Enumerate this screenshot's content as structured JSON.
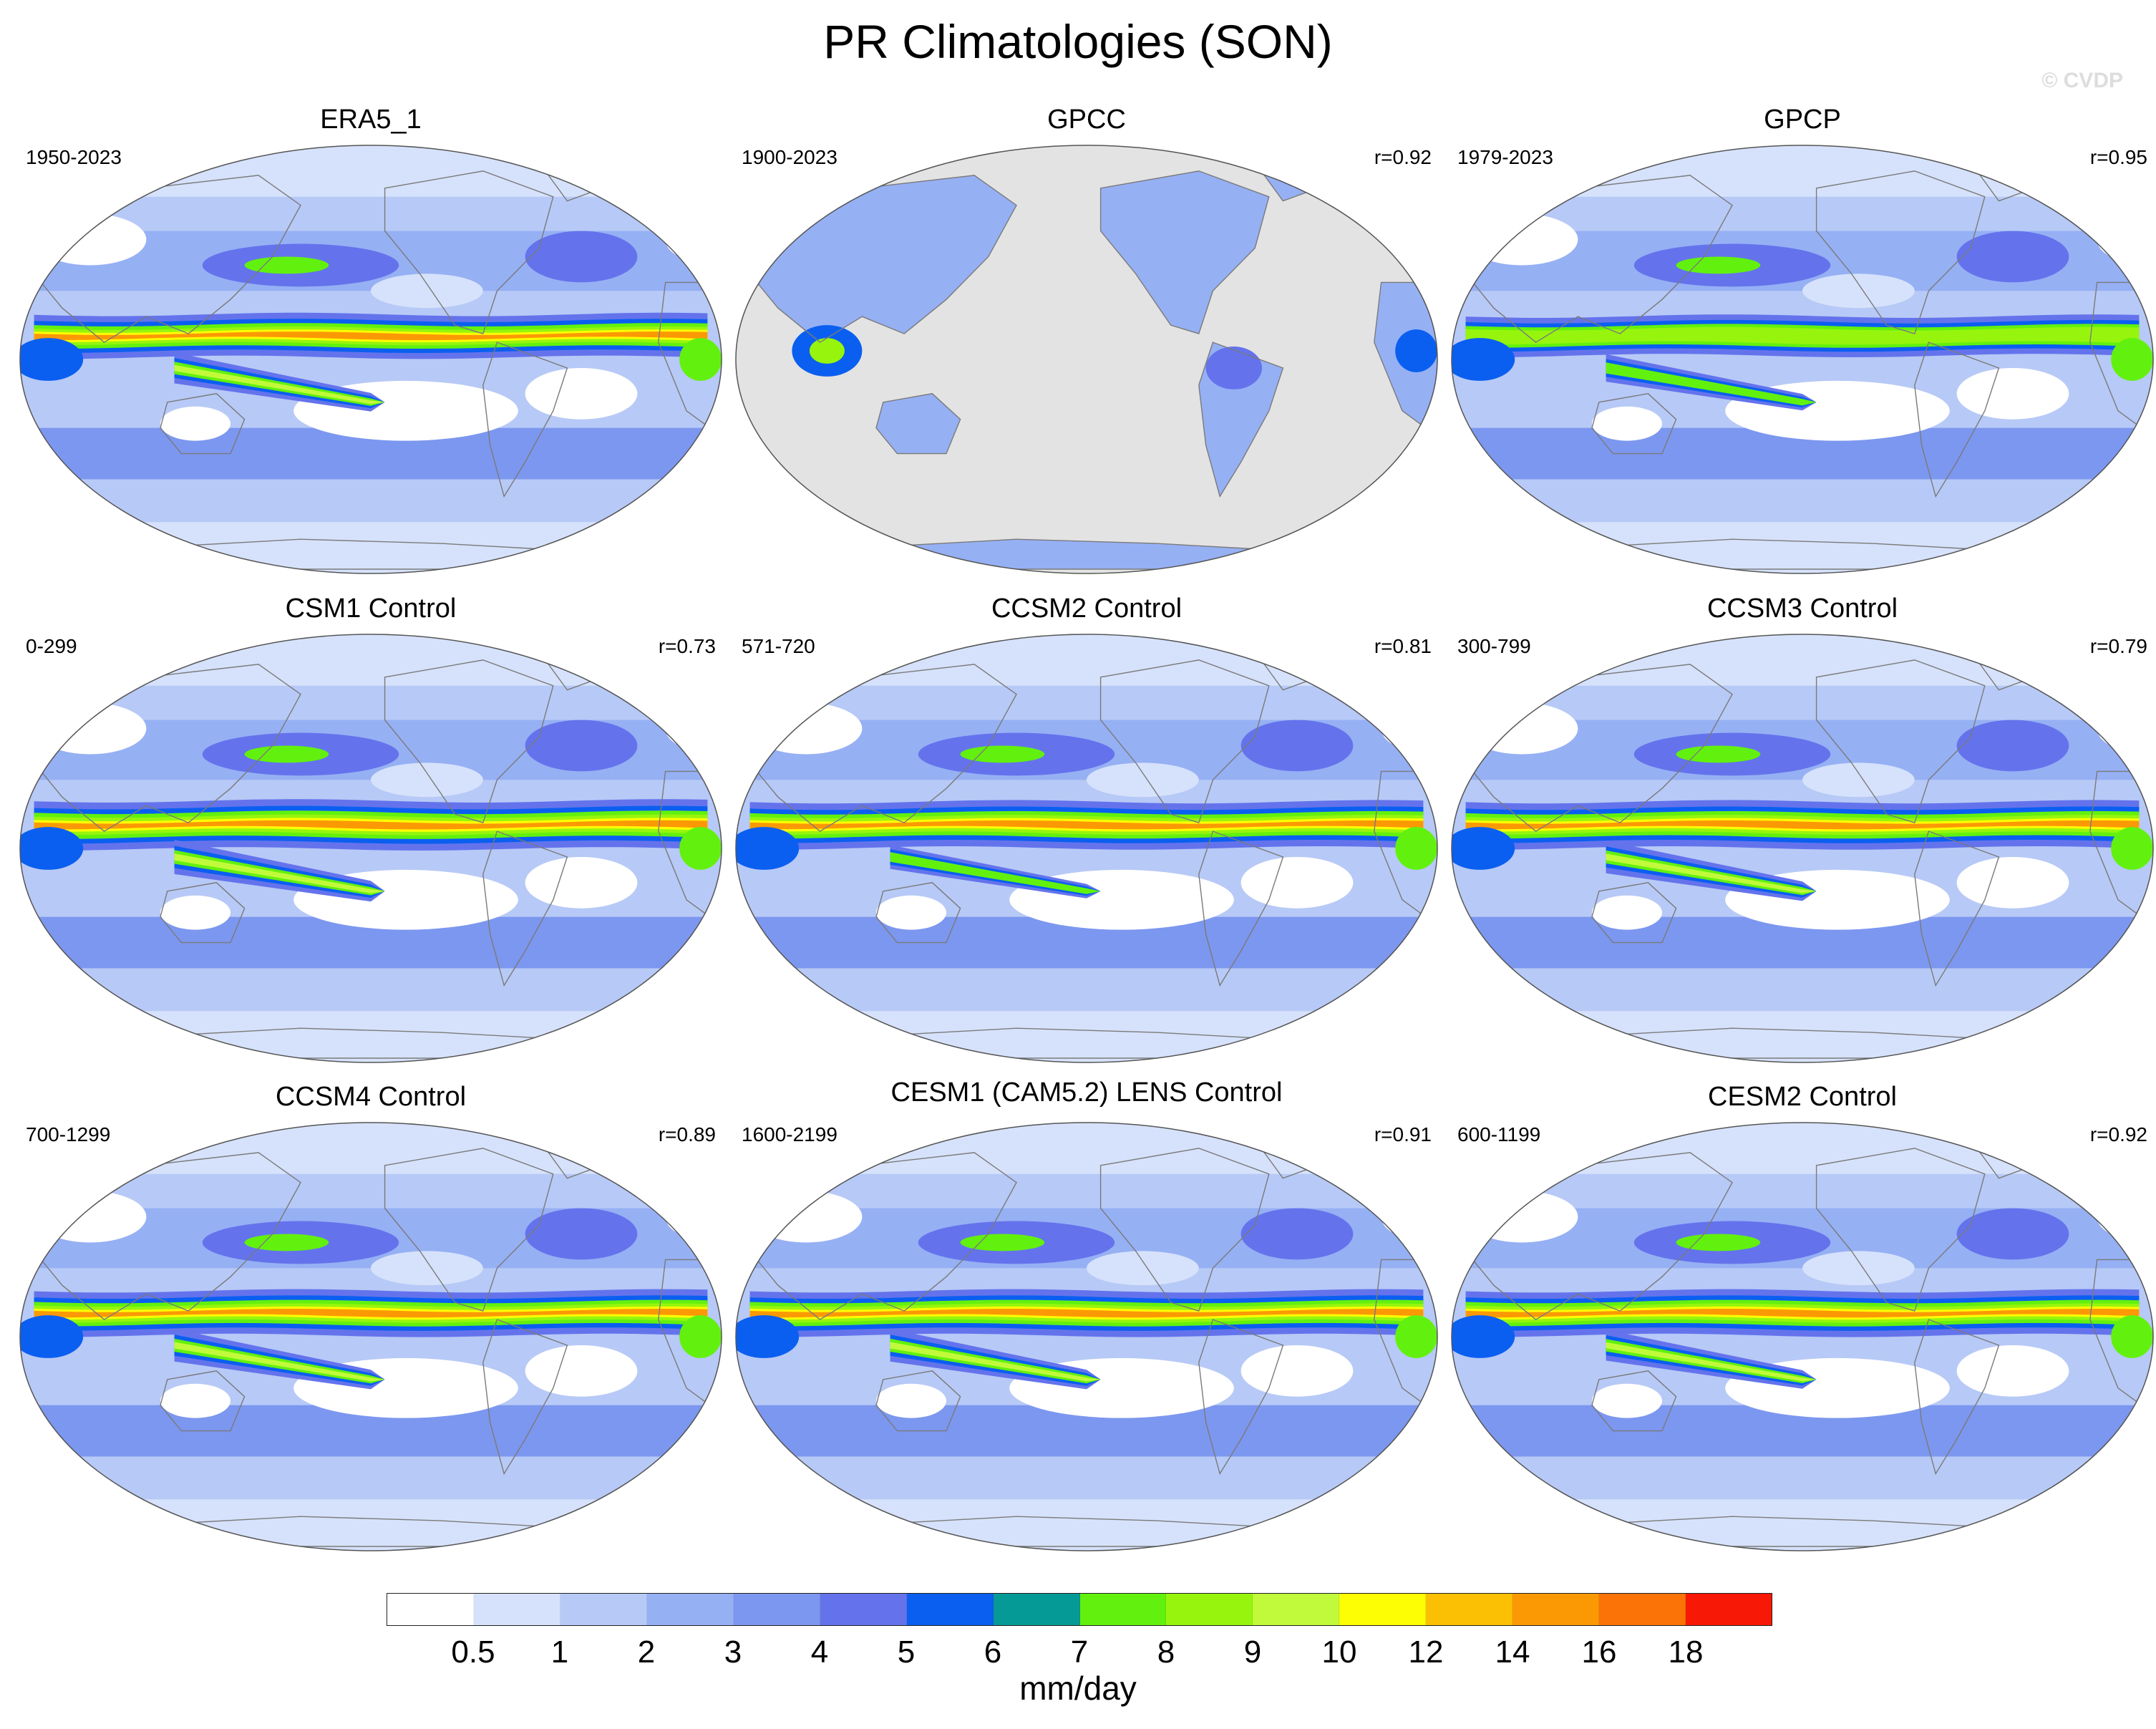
{
  "title": "PR Climatologies (SON)",
  "watermark": "© CVDP",
  "panels": [
    {
      "id": "era5",
      "title": "ERA5_1",
      "years": "1950-2023",
      "corr": "",
      "land_only": false,
      "itcz": 1.0,
      "spcz": 0.8
    },
    {
      "id": "gpcc",
      "title": "GPCC",
      "years": "1900-2023",
      "corr": "r=0.92",
      "land_only": true,
      "itcz": 0.0,
      "spcz": 0.0
    },
    {
      "id": "gpcp",
      "title": "GPCP",
      "years": "1979-2023",
      "corr": "r=0.95",
      "land_only": false,
      "itcz": 0.8,
      "spcz": 0.6
    },
    {
      "id": "csm1",
      "title": "CSM1 Control",
      "years": "0-299",
      "corr": "r=0.73",
      "land_only": false,
      "itcz": 1.3,
      "spcz": 1.0
    },
    {
      "id": "ccsm2",
      "title": "CCSM2 Control",
      "years": "571-720",
      "corr": "r=0.81",
      "land_only": false,
      "itcz": 1.2,
      "spcz": 0.4
    },
    {
      "id": "ccsm3",
      "title": "CCSM3 Control",
      "years": "300-799",
      "corr": "r=0.79",
      "land_only": false,
      "itcz": 1.2,
      "spcz": 0.9
    },
    {
      "id": "ccsm4",
      "title": "CCSM4 Control",
      "years": "700-1299",
      "corr": "r=0.89",
      "land_only": false,
      "itcz": 1.1,
      "spcz": 0.9
    },
    {
      "id": "cesm1",
      "title": "CESM1 (CAM5.2) LENS Control",
      "years": "1600-2199",
      "corr": "r=0.91",
      "land_only": false,
      "itcz": 1.1,
      "spcz": 0.9
    },
    {
      "id": "cesm2",
      "title": "CESM2 Control",
      "years": "600-1199",
      "corr": "r=0.92",
      "land_only": false,
      "itcz": 1.1,
      "spcz": 0.8
    }
  ],
  "colorbar": {
    "units": "mm/day",
    "levels": [
      "0.5",
      "1",
      "2",
      "3",
      "4",
      "5",
      "6",
      "7",
      "8",
      "9",
      "10",
      "12",
      "14",
      "16",
      "18"
    ],
    "colors": [
      "#ffffff",
      "#d6e2fb",
      "#b7c9f6",
      "#96b0f4",
      "#7c97ef",
      "#6473ec",
      "#0a5ff0",
      "#069a96",
      "#62f10e",
      "#97f50d",
      "#c1fa3a",
      "#fdfd04",
      "#fbc004",
      "#fb9904",
      "#fb7207",
      "#f81806"
    ],
    "missing_color": "#e3e3e3"
  }
}
